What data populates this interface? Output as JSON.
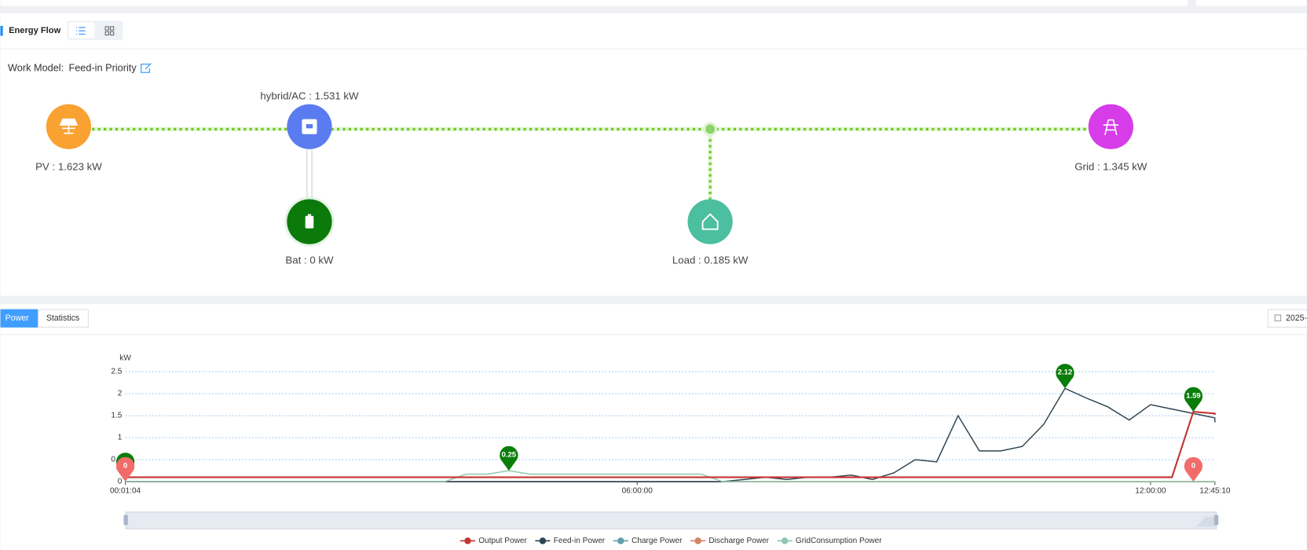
{
  "header": {
    "title": "Energy Flow"
  },
  "work_model": {
    "label": "Work Model:",
    "value": "Feed-in Priority"
  },
  "nodes": [
    {
      "label": "PV : 1.623 kW"
    },
    {
      "label": "hybrid/AC : 1.531 kW"
    },
    {
      "label": "Bat : 0 kW"
    },
    {
      "label": "Load : 0.185 kW"
    },
    {
      "label": "Grid : 1.345 kW"
    }
  ],
  "tabs": [
    "Power",
    "Statistics"
  ],
  "date_picker": "2025-",
  "chart_data": {
    "type": "line",
    "y_label": "kW",
    "x": [
      "00:01:04",
      "00:15:00",
      "00:30:00",
      "00:45:00",
      "01:00:00",
      "01:15:00",
      "01:30:00",
      "01:45:00",
      "02:00:00",
      "02:15:00",
      "02:30:00",
      "02:45:00",
      "03:00:00",
      "03:15:00",
      "03:30:00",
      "03:45:00",
      "04:00:00",
      "04:15:00",
      "04:30:00",
      "04:45:00",
      "05:00:00",
      "05:15:00",
      "05:30:00",
      "05:45:00",
      "06:00:00",
      "06:15:00",
      "06:30:00",
      "06:45:00",
      "07:00:00",
      "07:15:00",
      "07:30:00",
      "07:45:00",
      "08:00:00",
      "08:15:00",
      "08:30:00",
      "08:45:00",
      "09:00:00",
      "09:15:00",
      "09:30:00",
      "09:45:00",
      "10:00:00",
      "10:15:00",
      "10:30:00",
      "10:45:00",
      "11:00:00",
      "11:15:00",
      "11:30:00",
      "11:45:00",
      "12:00:00",
      "12:15:00",
      "12:30:00",
      "12:45:00",
      "12:45:10"
    ],
    "xlim": [
      "00:01:04",
      "12:45:10"
    ],
    "xticks": [
      "00:01:04",
      "06:00:00",
      "12:00:00",
      "12:45:10"
    ],
    "ylim": [
      0,
      2.5
    ],
    "yticks": [
      0,
      0.5,
      1,
      1.5,
      2,
      2.5
    ],
    "grid": true,
    "series": [
      {
        "name": "Output Power",
        "color": "#c23531",
        "values": [
          0.1,
          0.1,
          0.1,
          0.1,
          0.1,
          0.1,
          0.1,
          0.1,
          0.1,
          0.1,
          0.1,
          0.1,
          0.1,
          0.1,
          0.1,
          0.1,
          0.1,
          0.1,
          0.1,
          0.1,
          0.1,
          0.1,
          0.1,
          0.1,
          0.1,
          0.1,
          0.1,
          0.1,
          0.1,
          0.1,
          0.1,
          0.1,
          0.1,
          0.1,
          0.1,
          0.1,
          0.1,
          0.1,
          0.1,
          0.1,
          0.1,
          0.1,
          0.1,
          0.1,
          0.1,
          0.1,
          0.1,
          0.1,
          0.1,
          0.1,
          1.59,
          1.55,
          1.52
        ]
      },
      {
        "name": "Feed-in Power",
        "color": "#2f4554",
        "values": [
          0,
          0,
          0,
          0,
          0,
          0,
          0,
          0,
          0,
          0,
          0,
          0,
          0,
          0,
          0,
          0,
          0,
          0,
          0,
          0,
          0,
          0,
          0,
          0,
          0,
          0,
          0,
          0,
          0,
          0.05,
          0.1,
          0.05,
          0.1,
          0.1,
          0.15,
          0.05,
          0.2,
          0.5,
          0.45,
          1.5,
          0.7,
          0.7,
          0.8,
          1.3,
          2.12,
          1.9,
          1.7,
          1.4,
          1.75,
          1.65,
          1.55,
          1.45,
          1.35
        ]
      },
      {
        "name": "Charge Power",
        "color": "#61a0a8",
        "values": [
          0,
          0,
          0,
          0,
          0,
          0,
          0,
          0,
          0,
          0,
          0,
          0,
          0,
          0,
          0,
          0,
          0,
          0,
          0,
          0,
          0,
          0,
          0,
          0,
          0,
          0,
          0,
          0,
          0,
          0,
          0,
          0,
          0,
          0,
          0,
          0,
          0,
          0,
          0,
          0,
          0,
          0,
          0,
          0,
          0,
          0,
          0,
          0,
          0,
          0,
          0,
          0,
          0
        ]
      },
      {
        "name": "Discharge Power",
        "color": "#d48265",
        "values": [
          0,
          0,
          0,
          0,
          0,
          0,
          0,
          0,
          0,
          0,
          0,
          0,
          0,
          0,
          0,
          0,
          0,
          0,
          0,
          0,
          0,
          0,
          0,
          0,
          0,
          0,
          0,
          0,
          0,
          0,
          0,
          0,
          0,
          0,
          0,
          0,
          0,
          0,
          0,
          0,
          0,
          0,
          0,
          0,
          0,
          0,
          0,
          0,
          0,
          0,
          0,
          0,
          0
        ]
      },
      {
        "name": "GridConsumption Power",
        "color": "#91c7ae",
        "values": [
          0,
          0,
          0,
          0,
          0,
          0,
          0,
          0,
          0,
          0,
          0,
          0,
          0,
          0,
          0,
          0,
          0.17,
          0.17,
          0.25,
          0.17,
          0.17,
          0.17,
          0.17,
          0.17,
          0.17,
          0.17,
          0.17,
          0.17,
          0,
          0,
          0,
          0,
          0,
          0,
          0,
          0,
          0,
          0,
          0,
          0,
          0,
          0,
          0,
          0,
          0,
          0,
          0,
          0,
          0,
          0,
          0,
          0,
          0
        ]
      }
    ],
    "markers": [
      {
        "x": "00:01:04",
        "value": 0.1,
        "color": "#0a7d0a"
      },
      {
        "x": "00:01:04",
        "value": 0,
        "color": "#f26b6b"
      },
      {
        "x": "04:30:00",
        "value": 0.25,
        "color": "#0a7d0a"
      },
      {
        "x": "11:00:00",
        "value": 2.12,
        "color": "#0a7d0a"
      },
      {
        "x": "12:30:00",
        "value": 1.59,
        "color": "#0a7d0a"
      },
      {
        "x": "12:30:00",
        "value": 0,
        "color": "#f26b6b"
      }
    ]
  }
}
